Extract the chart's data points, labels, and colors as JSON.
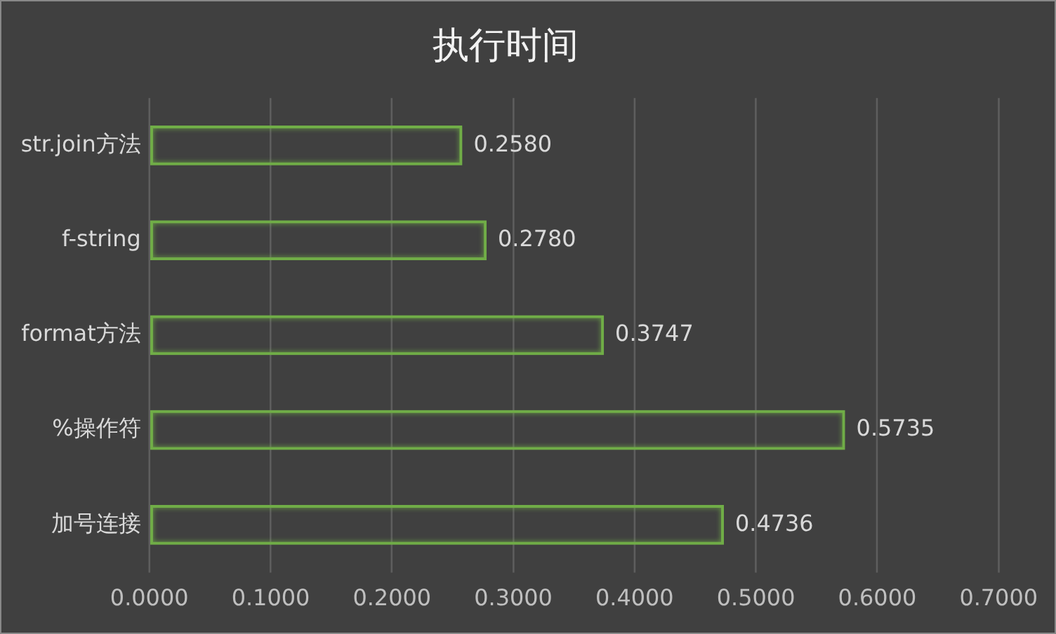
{
  "chart_data": {
    "type": "bar",
    "orientation": "horizontal",
    "title": "执行时间",
    "categories": [
      "str.join方法",
      "f-string",
      "format方法",
      "%操作符",
      "加号连接"
    ],
    "values": [
      0.258,
      0.278,
      0.3747,
      0.5735,
      0.4736
    ],
    "value_labels": [
      "0.2580",
      "0.2780",
      "0.3747",
      "0.5735",
      "0.4736"
    ],
    "color": "#70ad47",
    "xlim": [
      0,
      0.7
    ],
    "xticks": [
      {
        "value": 0,
        "label": "0.0000"
      },
      {
        "value": 0.1,
        "label": "0.1000"
      },
      {
        "value": 0.2,
        "label": "0.2000"
      },
      {
        "value": 0.3,
        "label": "0.3000"
      },
      {
        "value": 0.4,
        "label": "0.4000"
      },
      {
        "value": 0.5,
        "label": "0.5000"
      },
      {
        "value": 0.6,
        "label": "0.6000"
      },
      {
        "value": 0.7,
        "label": "0.7000"
      }
    ],
    "grid": "x",
    "legend": false
  }
}
